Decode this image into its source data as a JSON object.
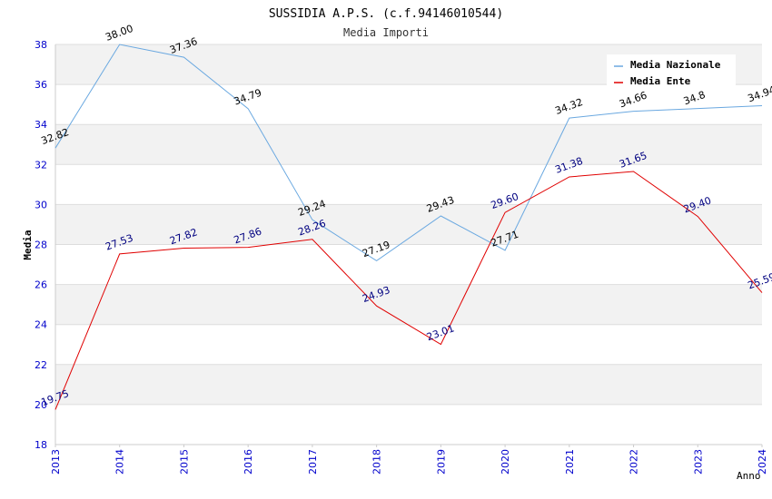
{
  "chart_data": {
    "type": "line",
    "title": "SUSSIDIA A.P.S. (c.f.94146010544)",
    "subtitle": "Media Importi",
    "xlabel": "Anno",
    "ylabel": "Media",
    "ylim": [
      18,
      38
    ],
    "yticks": [
      "18",
      "20",
      "22",
      "24",
      "26",
      "28",
      "30",
      "32",
      "34",
      "36",
      "38"
    ],
    "categories": [
      "2013",
      "2014",
      "2015",
      "2016",
      "2017",
      "2018",
      "2019",
      "2020",
      "2021",
      "2022",
      "2023",
      "2024"
    ],
    "legend_position": "top-right",
    "grid": true,
    "series": [
      {
        "name": "Media Nazionale",
        "color": "#6aa8e0",
        "label_color": "#000000",
        "values": [
          32.82,
          38.0,
          37.36,
          34.79,
          29.24,
          27.19,
          29.43,
          27.71,
          34.32,
          34.66,
          34.8,
          34.94
        ],
        "labels": [
          "32.82",
          "38.00",
          "37.36",
          "34.79",
          "29.24",
          "27.19",
          "29.43",
          "27.71",
          "34.32",
          "34.66",
          "34.8",
          "34.94"
        ]
      },
      {
        "name": "Media Ente",
        "color": "#e00000",
        "label_color": "#000080",
        "values": [
          19.75,
          27.53,
          27.82,
          27.86,
          28.26,
          24.93,
          23.01,
          29.6,
          31.38,
          31.65,
          29.4,
          25.59
        ],
        "labels": [
          "19.75",
          "27.53",
          "27.82",
          "27.86",
          "28.26",
          "24.93",
          "23.01",
          "29.60",
          "31.38",
          "31.65",
          "29.40",
          "25.59"
        ]
      }
    ]
  }
}
